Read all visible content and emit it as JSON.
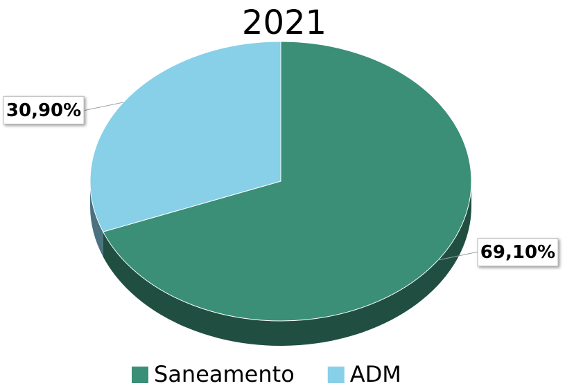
{
  "chart_data": {
    "type": "pie",
    "title": "2021",
    "categories": [
      "Saneamento",
      "ADM"
    ],
    "values": [
      69.1,
      30.9
    ],
    "value_labels": [
      "69,10%",
      "30,90%"
    ],
    "colors": [
      "#3a8f76",
      "#87d0e8"
    ],
    "legend": "bottom"
  }
}
